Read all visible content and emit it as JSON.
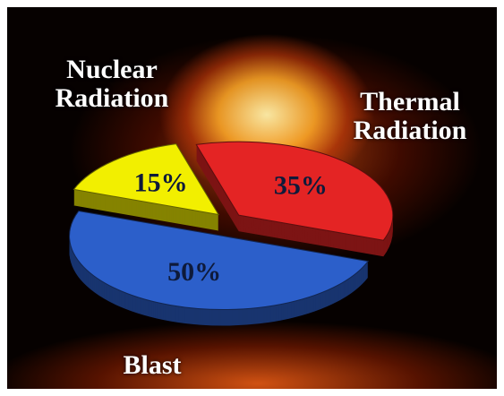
{
  "chart_data": {
    "type": "pie",
    "categories": [
      "Nuclear Radiation",
      "Thermal Radiation",
      "Blast"
    ],
    "values": [
      15,
      35,
      50
    ],
    "value_labels": [
      "15%",
      "35%",
      "50%"
    ],
    "colors": [
      "#f2ef00",
      "#e42424",
      "#2c5fca"
    ]
  }
}
